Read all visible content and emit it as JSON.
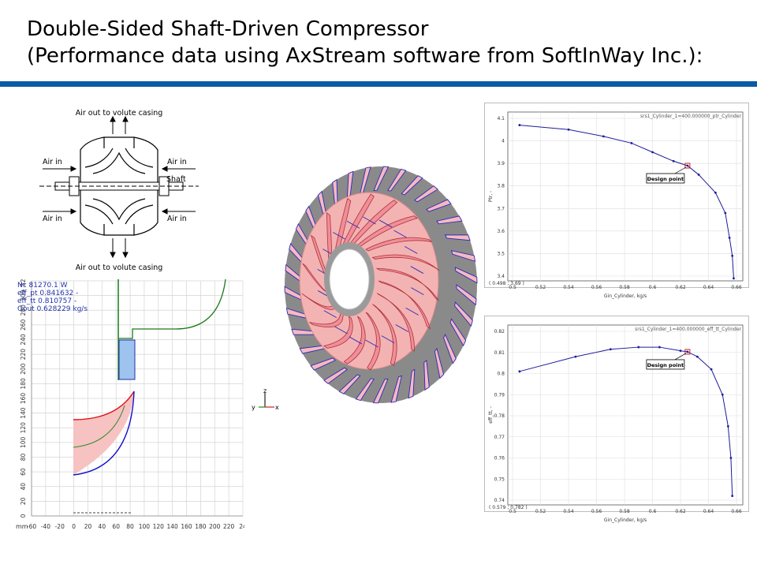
{
  "title": {
    "line1": "Double-Sided Shaft-Driven Compressor",
    "line2": "(Performance data using AxStream software from SoftInWay Inc.):"
  },
  "colors": {
    "rule": "#0a5aa6",
    "curve": "#1c1c9c",
    "design": "#cc2222"
  },
  "schematic": {
    "top_label": "Air out to volute casing",
    "bottom_label": "Air out to volute casing",
    "air_in_left_top": "Air in",
    "air_in_right_top": "Air in",
    "air_in_left_bottom": "Air in",
    "air_in_right_bottom": "Air in",
    "shaft_label": "Shaft"
  },
  "meridional": {
    "readout": [
      "Nc 81270.1 W",
      "eff_pt 0.841632 -",
      "eff_tt 0.810757 -",
      "Gout 0.628229 kg/s"
    ],
    "unit_label": "mm",
    "x_ticks": [
      "-60",
      "-40",
      "-20",
      "0",
      "20",
      "40",
      "60",
      "80",
      "100",
      "120",
      "140",
      "160",
      "180",
      "200",
      "220",
      "24"
    ],
    "y_ticks": [
      "0",
      "20",
      "40",
      "60",
      "80",
      "100",
      "120",
      "140",
      "160",
      "180",
      "200",
      "220",
      "240",
      "260",
      "280",
      "300",
      "320"
    ]
  },
  "axes_triad": {
    "z": "z",
    "y": "y",
    "x": "x"
  },
  "chart_data": [
    {
      "type": "line",
      "title": "srs1_Cylinder_1=400.000000_ptr_Cylinder",
      "xlabel": "Gin_Cylinder, kg/s",
      "ylabel": "Ptr, -",
      "xlim": [
        0.5,
        0.66
      ],
      "ylim": [
        3.4,
        4.1
      ],
      "x_ticks": [
        "0.5",
        "0.52",
        "0.54",
        "0.56",
        "0.58",
        "0.6",
        "0.62",
        "0.64",
        "0.66"
      ],
      "y_ticks": [
        "3.4",
        "3.5",
        "3.6",
        "3.7",
        "3.8",
        "3.9",
        "4",
        "4.1"
      ],
      "x": [
        0.505,
        0.54,
        0.565,
        0.585,
        0.6,
        0.615,
        0.625,
        0.633,
        0.645,
        0.652,
        0.655,
        0.657,
        0.658
      ],
      "y": [
        4.07,
        4.05,
        4.02,
        3.99,
        3.95,
        3.91,
        3.89,
        3.85,
        3.77,
        3.68,
        3.57,
        3.49,
        3.39
      ],
      "design_point": {
        "x": 0.625,
        "y": 3.89,
        "label": "Design point"
      },
      "cursor": "( 0.498 ;  3.69 )",
      "grid": true
    },
    {
      "type": "line",
      "title": "srs1_Cylinder_1=400.000000_eff_tt_Cylinder",
      "xlabel": "Gin_Cylinder, kg/s",
      "ylabel": "eff_tt, -",
      "xlim": [
        0.5,
        0.66
      ],
      "ylim": [
        0.74,
        0.82
      ],
      "x_ticks": [
        "0.5",
        "0.52",
        "0.54",
        "0.56",
        "0.58",
        "0.6",
        "0.62",
        "0.64",
        "0.66"
      ],
      "y_ticks": [
        "0.74",
        "0.75",
        "0.76",
        "0.77",
        "0.78",
        "0.79",
        "0.8",
        "0.81",
        "0.82"
      ],
      "x": [
        0.505,
        0.545,
        0.57,
        0.59,
        0.605,
        0.62,
        0.625,
        0.632,
        0.642,
        0.65,
        0.654,
        0.656,
        0.657
      ],
      "y": [
        0.801,
        0.808,
        0.8115,
        0.8125,
        0.8125,
        0.8108,
        0.8103,
        0.808,
        0.802,
        0.79,
        0.775,
        0.76,
        0.742
      ],
      "design_point": {
        "x": 0.625,
        "y": 0.8103,
        "label": "Design point"
      },
      "cursor": "( 0.579 ;  0.782 )",
      "grid": true
    }
  ]
}
